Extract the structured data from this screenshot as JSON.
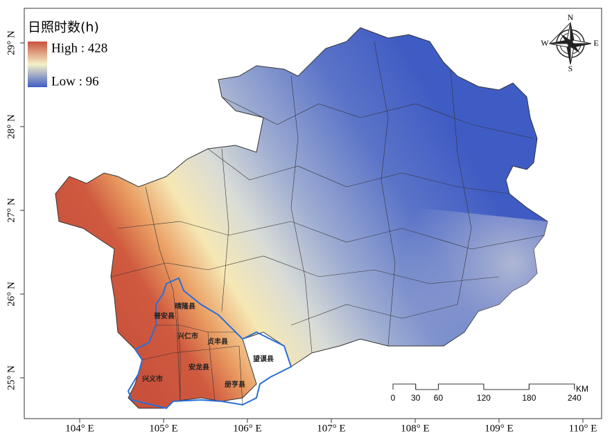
{
  "legend": {
    "title": "日照时数(h)",
    "high": "High : 428",
    "low": "Low : 96"
  },
  "compass": {
    "n": "N",
    "s": "S",
    "e": "E",
    "w": "W"
  },
  "lon_ticks": [
    {
      "value": 104,
      "label": "104° E"
    },
    {
      "value": 105,
      "label": "105° E"
    },
    {
      "value": 106,
      "label": "106° E"
    },
    {
      "value": 107,
      "label": "107° E"
    },
    {
      "value": 108,
      "label": "108° E"
    },
    {
      "value": 109,
      "label": "109° E"
    },
    {
      "value": 110,
      "label": "110° E"
    }
  ],
  "lat_ticks": [
    {
      "value": 25,
      "label": "25° N"
    },
    {
      "value": 26,
      "label": "26° N"
    },
    {
      "value": 27,
      "label": "27° N"
    },
    {
      "value": 28,
      "label": "28° N"
    },
    {
      "value": 29,
      "label": "29° N"
    }
  ],
  "counties": [
    "普安县",
    "晴隆县",
    "兴仁市",
    "贞丰县",
    "望谟县",
    "安龙县",
    "兴义市",
    "册亨县"
  ],
  "scale": {
    "ticks": [
      0,
      30,
      60,
      120,
      180,
      240
    ],
    "unit": "KM"
  }
}
